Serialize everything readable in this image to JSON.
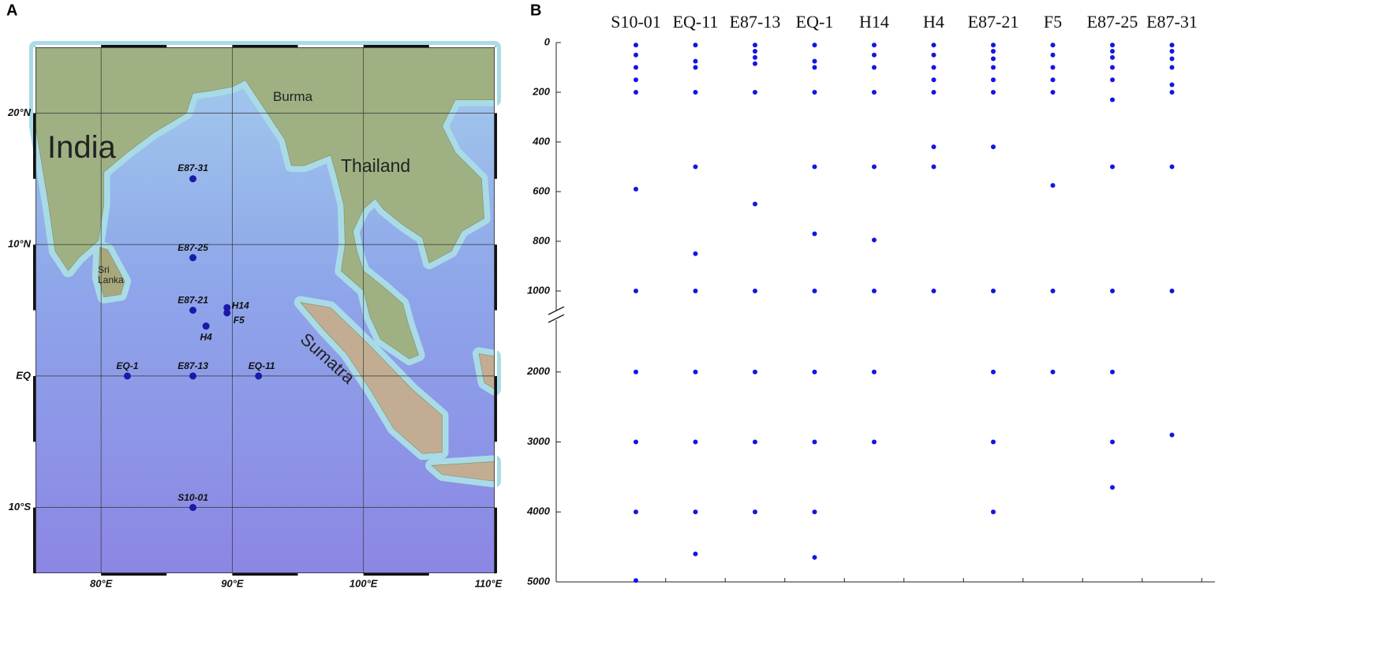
{
  "chart_data": [
    {
      "type": "map",
      "panel": "A",
      "xlim": [
        75,
        110
      ],
      "ylim": [
        -15,
        25
      ],
      "xticks": [
        {
          "value": 80,
          "label": "80°E"
        },
        {
          "value": 90,
          "label": "90°E"
        },
        {
          "value": 100,
          "label": "100°E"
        },
        {
          "value": 110,
          "label": "110°E"
        }
      ],
      "yticks": [
        {
          "value": 20,
          "label": "20°N"
        },
        {
          "value": 10,
          "label": "10°N"
        },
        {
          "value": 0,
          "label": "EQ"
        },
        {
          "value": -10,
          "label": "10°S"
        }
      ],
      "grid": true,
      "places": [
        "India",
        "Sri Lanka",
        "Burma",
        "Thailand",
        "Sumatra"
      ],
      "stations": {
        "names": [
          "E87-31",
          "E87-25",
          "E87-21",
          "H14",
          "F5",
          "H4",
          "EQ-1",
          "E87-13",
          "EQ-11",
          "S10-01"
        ],
        "lon": [
          87,
          87,
          87,
          89.6,
          89.6,
          88,
          82,
          87,
          92,
          87
        ],
        "lat": [
          15,
          9,
          5,
          5.2,
          4.8,
          3.8,
          0,
          0,
          0,
          -10
        ]
      },
      "color": "#1a1aa8"
    },
    {
      "type": "dot",
      "panel": "B",
      "categories": [
        "S10-01",
        "EQ-11",
        "E87-13",
        "EQ-1",
        "H14",
        "H4",
        "E87-21",
        "F5",
        "E87-25",
        "E87-31"
      ],
      "values": [
        [
          10,
          50,
          100,
          150,
          200,
          590,
          1000,
          2000,
          3000,
          4000,
          4980
        ],
        [
          10,
          75,
          100,
          200,
          500,
          850,
          1000,
          2000,
          3000,
          4000,
          4600
        ],
        [
          10,
          35,
          60,
          85,
          200,
          650,
          1000,
          2000,
          3000,
          4000
        ],
        [
          10,
          75,
          100,
          200,
          500,
          770,
          1000,
          2000,
          3000,
          4000,
          4650
        ],
        [
          10,
          50,
          100,
          200,
          500,
          795,
          1000,
          2000,
          3000
        ],
        [
          10,
          50,
          100,
          150,
          200,
          420,
          500,
          1000
        ],
        [
          10,
          35,
          65,
          100,
          150,
          200,
          420,
          1000,
          2000,
          3000,
          4000
        ],
        [
          10,
          50,
          100,
          150,
          200,
          575,
          1000,
          2000
        ],
        [
          10,
          35,
          60,
          100,
          150,
          230,
          500,
          1000,
          2000,
          3000,
          3650
        ],
        [
          10,
          35,
          65,
          100,
          170,
          200,
          500,
          1000,
          2900
        ]
      ],
      "ylim": [
        0,
        5000
      ],
      "yticks": [
        0,
        200,
        400,
        600,
        800,
        1000,
        2000,
        3000,
        4000,
        5000
      ],
      "y_break": 1000,
      "inverted": true,
      "color": "#1414e6"
    }
  ]
}
